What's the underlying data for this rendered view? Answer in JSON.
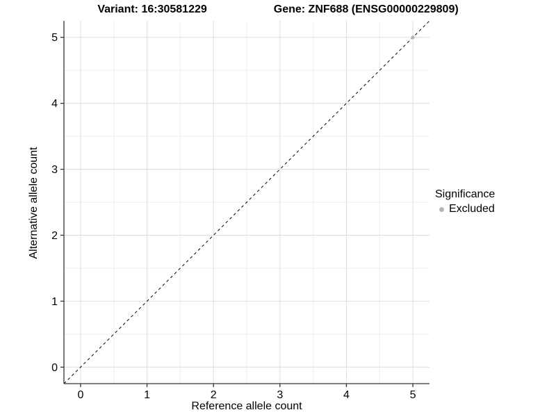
{
  "chart_data": {
    "type": "scatter",
    "title_left": "Variant: 16:30581229",
    "title_right": "Gene: ZNF688 (ENSG00000229809)",
    "xlabel": "Reference allele count",
    "ylabel": "Alternative allele count",
    "xlim": [
      -0.25,
      5.25
    ],
    "ylim": [
      -0.25,
      5.25
    ],
    "xticks": [
      0,
      1,
      2,
      3,
      4,
      5
    ],
    "yticks": [
      0,
      1,
      2,
      3,
      4,
      5
    ],
    "minor_xticks": [
      0.5,
      1.5,
      2.5,
      3.5,
      4.5
    ],
    "minor_yticks": [
      0.5,
      1.5,
      2.5,
      3.5,
      4.5
    ],
    "grid": true,
    "identity_line": {
      "style": "dashed",
      "from": [
        -0.25,
        -0.25
      ],
      "to": [
        5.25,
        5.25
      ],
      "color": "#000000"
    },
    "series": [
      {
        "name": "Excluded",
        "color": "#b5b5b5",
        "points": [
          [
            5,
            5
          ]
        ]
      }
    ],
    "legend": {
      "title": "Significance",
      "position": "right",
      "items": [
        {
          "label": "Excluded",
          "color": "#b5b5b5"
        }
      ]
    },
    "colors": {
      "axis_line": "#333333",
      "tick_mark": "#333333",
      "tick_label": "#000000",
      "grid_major": "#dedede",
      "grid_minor": "#ededed",
      "background": "#ffffff"
    }
  }
}
